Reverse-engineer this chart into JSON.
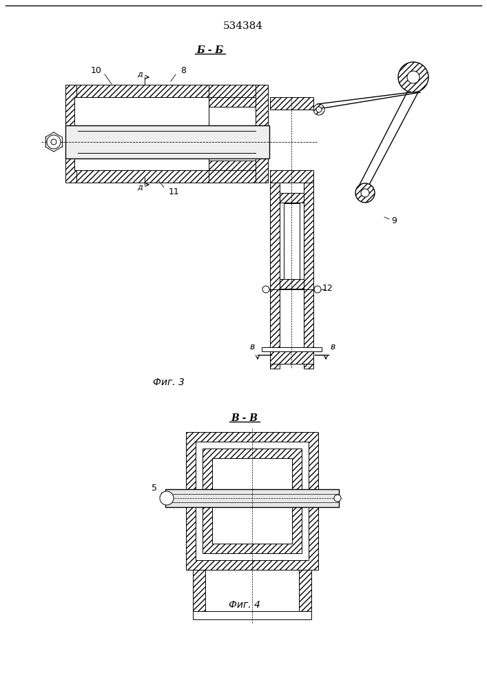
{
  "title": "534384",
  "bg": "#ffffff",
  "lc": "#000000",
  "fig3_label": "Б - Б",
  "fig4_label": "В - В",
  "fig3_caption": "Фиг. 3",
  "fig4_caption": "Фиг. 4",
  "lbl_8": "8",
  "lbl_9": "9",
  "lbl_10": "10",
  "lbl_11": "11",
  "lbl_12": "12",
  "lbl_5": "5",
  "lbl_d": "д",
  "lbl_v": "в"
}
